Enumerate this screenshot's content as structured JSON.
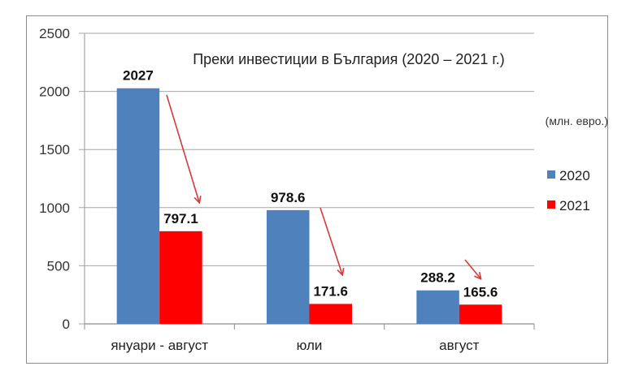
{
  "chart_data": {
    "type": "bar",
    "title": "Преки инвестиции в България (2020 – 2021 г.)",
    "unit_label": "(млн. евро.)",
    "xlabel": "",
    "ylabel": "",
    "ylim": [
      0,
      2500
    ],
    "yticks": [
      0,
      500,
      1000,
      1500,
      2000,
      2500
    ],
    "grid": true,
    "legend_position": "right",
    "categories": [
      "януари - август",
      "юли",
      "август"
    ],
    "series": [
      {
        "name": "2020",
        "color": "#4F81BD",
        "values": [
          2027,
          978.6,
          288.2
        ],
        "labels": [
          "2027",
          "978.6",
          "288.2"
        ]
      },
      {
        "name": "2021",
        "color": "#FF0000",
        "values": [
          797.1,
          171.6,
          165.6
        ],
        "labels": [
          "797.1",
          "171.6",
          "165.6"
        ]
      }
    ],
    "annotations": [
      "red arrows from 2020 bars pointing down to 2021 bars, indicating decline"
    ]
  }
}
